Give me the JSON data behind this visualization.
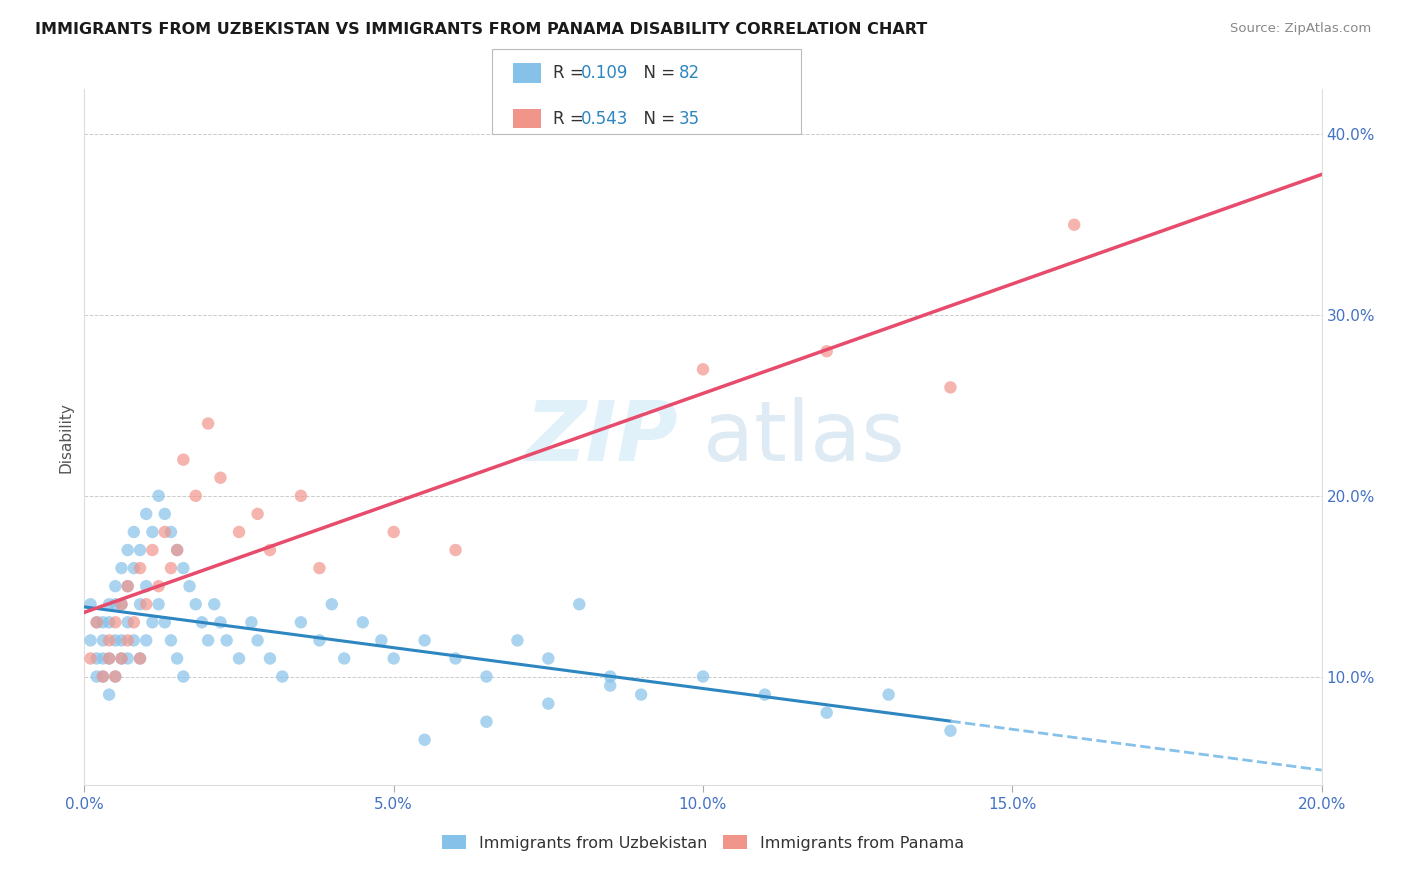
{
  "title": "IMMIGRANTS FROM UZBEKISTAN VS IMMIGRANTS FROM PANAMA DISABILITY CORRELATION CHART",
  "source": "Source: ZipAtlas.com",
  "ylabel": "Disability",
  "xlim": [
    0.0,
    0.2
  ],
  "ylim": [
    0.04,
    0.425
  ],
  "xticks": [
    0.0,
    0.05,
    0.1,
    0.15,
    0.2
  ],
  "yticks": [
    0.1,
    0.2,
    0.3,
    0.4
  ],
  "color_uzbekistan": "#85C1E9",
  "color_panama": "#F1948A",
  "color_uzb_line_solid": "#2E86C1",
  "color_uzb_line_dash": "#85C1E9",
  "color_pan_line": "#E74C6C",
  "watermark_color": "#D6EAF8",
  "r_uzb": "0.109",
  "n_uzb": "82",
  "r_pan": "0.543",
  "n_pan": "35",
  "legend_text_color": "#333333",
  "legend_num_color": "#2E86C1",
  "uzb_x": [
    0.001,
    0.001,
    0.002,
    0.002,
    0.002,
    0.003,
    0.003,
    0.003,
    0.003,
    0.004,
    0.004,
    0.004,
    0.004,
    0.005,
    0.005,
    0.005,
    0.005,
    0.006,
    0.006,
    0.006,
    0.006,
    0.007,
    0.007,
    0.007,
    0.007,
    0.008,
    0.008,
    0.008,
    0.009,
    0.009,
    0.009,
    0.01,
    0.01,
    0.01,
    0.011,
    0.011,
    0.012,
    0.012,
    0.013,
    0.013,
    0.014,
    0.014,
    0.015,
    0.015,
    0.016,
    0.016,
    0.017,
    0.018,
    0.019,
    0.02,
    0.021,
    0.022,
    0.023,
    0.025,
    0.027,
    0.028,
    0.03,
    0.032,
    0.035,
    0.038,
    0.04,
    0.042,
    0.045,
    0.048,
    0.05,
    0.055,
    0.06,
    0.065,
    0.07,
    0.075,
    0.08,
    0.085,
    0.09,
    0.1,
    0.11,
    0.12,
    0.13,
    0.14,
    0.055,
    0.065,
    0.075,
    0.085
  ],
  "uzb_y": [
    0.14,
    0.12,
    0.13,
    0.11,
    0.1,
    0.13,
    0.12,
    0.11,
    0.1,
    0.14,
    0.13,
    0.11,
    0.09,
    0.15,
    0.14,
    0.12,
    0.1,
    0.16,
    0.14,
    0.12,
    0.11,
    0.17,
    0.15,
    0.13,
    0.11,
    0.18,
    0.16,
    0.12,
    0.17,
    0.14,
    0.11,
    0.19,
    0.15,
    0.12,
    0.18,
    0.13,
    0.2,
    0.14,
    0.19,
    0.13,
    0.18,
    0.12,
    0.17,
    0.11,
    0.16,
    0.1,
    0.15,
    0.14,
    0.13,
    0.12,
    0.14,
    0.13,
    0.12,
    0.11,
    0.13,
    0.12,
    0.11,
    0.1,
    0.13,
    0.12,
    0.14,
    0.11,
    0.13,
    0.12,
    0.11,
    0.12,
    0.11,
    0.1,
    0.12,
    0.11,
    0.14,
    0.1,
    0.09,
    0.1,
    0.09,
    0.08,
    0.09,
    0.07,
    0.065,
    0.075,
    0.085,
    0.095
  ],
  "pan_x": [
    0.001,
    0.002,
    0.003,
    0.004,
    0.004,
    0.005,
    0.005,
    0.006,
    0.006,
    0.007,
    0.007,
    0.008,
    0.009,
    0.009,
    0.01,
    0.011,
    0.012,
    0.013,
    0.014,
    0.015,
    0.016,
    0.018,
    0.02,
    0.022,
    0.025,
    0.028,
    0.03,
    0.035,
    0.038,
    0.05,
    0.06,
    0.1,
    0.12,
    0.14,
    0.16
  ],
  "pan_y": [
    0.11,
    0.13,
    0.1,
    0.12,
    0.11,
    0.13,
    0.1,
    0.14,
    0.11,
    0.15,
    0.12,
    0.13,
    0.16,
    0.11,
    0.14,
    0.17,
    0.15,
    0.18,
    0.16,
    0.17,
    0.22,
    0.2,
    0.24,
    0.21,
    0.18,
    0.19,
    0.17,
    0.2,
    0.16,
    0.18,
    0.17,
    0.27,
    0.28,
    0.26,
    0.35
  ]
}
